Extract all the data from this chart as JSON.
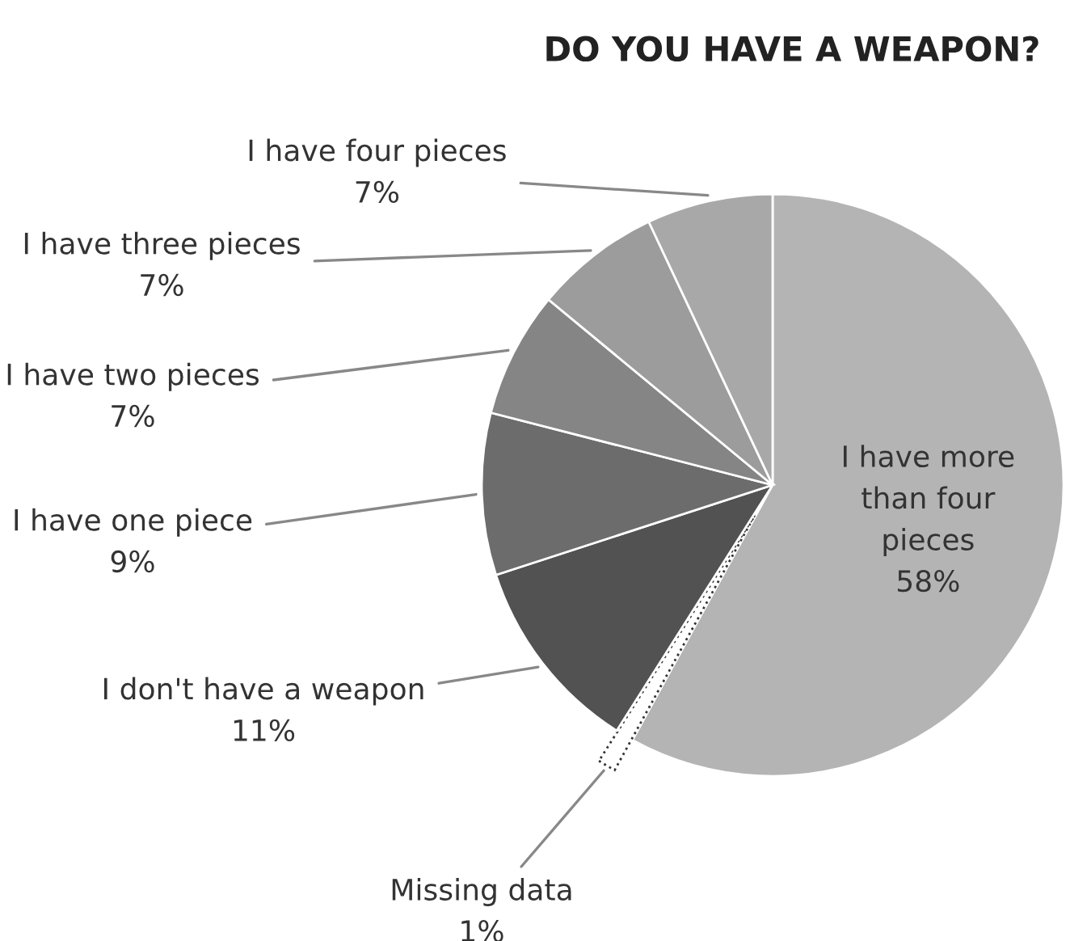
{
  "chart_data": {
    "type": "pie",
    "title": "DO YOU HAVE A WEAPON?",
    "categories": [
      "I have more than four pieces",
      "Missing data",
      "I don't have a weapon",
      "I have one piece",
      "I have two pieces",
      "I have three pieces",
      "I have four pieces"
    ],
    "values": [
      58,
      1,
      11,
      9,
      7,
      7,
      7
    ],
    "colors": [
      "#b4b4b4",
      "#ffffff",
      "#525252",
      "#6c6c6c",
      "#858585",
      "#9c9c9c",
      "#a8a8a8"
    ],
    "value_labels": [
      "58%",
      "1%",
      "11%",
      "9%",
      "7%",
      "7%",
      "7%"
    ],
    "legend": false
  }
}
